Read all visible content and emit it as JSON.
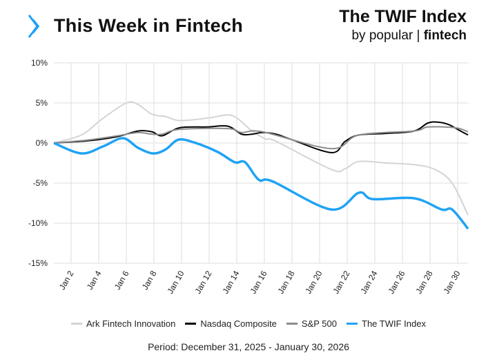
{
  "header": {
    "title": "This Week in Fintech",
    "brand_title": "The TWIF Index",
    "brand_by": "by popular |",
    "brand_bold": "fintech"
  },
  "footer": {
    "period": "Period: December 31, 2025 - January 30, 2026"
  },
  "chart_data": {
    "type": "line",
    "title": "The TWIF Index",
    "xlabel": "",
    "ylabel": "",
    "x_unit": "days since Dec 31, 2025",
    "xlim": [
      0,
      30
    ],
    "ylim": [
      -15,
      10
    ],
    "yticks": [
      10,
      5,
      0,
      -5,
      -10,
      -15
    ],
    "ytick_labels": [
      "10%",
      "5%",
      "0%",
      "-5%",
      "-10%",
      "-15%"
    ],
    "xticks": [
      1.25,
      3.25,
      5.25,
      7.25,
      9.25,
      11.25,
      13.25,
      15.25,
      17.25,
      19.25,
      21.25,
      23.25,
      25.25,
      27.25,
      29.25
    ],
    "xtick_labels": [
      "Jan 2",
      "Jan 4",
      "Jan 6",
      "Jan 8",
      "Jan 10",
      "Jan 12",
      "Jan 14",
      "Jan 16",
      "Jan 18",
      "Jan 20",
      "Jan 22",
      "Jan 24",
      "Jan 26",
      "Jan 28",
      "Jan 30"
    ],
    "grid": true,
    "legend_position": "bottom",
    "series": [
      {
        "name": "Ark Fintech Innovation",
        "color": "#d4d4d4",
        "x": [
          0,
          2,
          3.5,
          5.25,
          6.1,
          7.1,
          8.1,
          9.1,
          11.1,
          12.6,
          13.35,
          14.35,
          15.35,
          16.1,
          20.1,
          21.1,
          22.1,
          24.1,
          26.1,
          27.6,
          28.85,
          30
        ],
        "y": [
          0,
          1.0,
          3.0,
          5.0,
          4.8,
          3.6,
          3.3,
          2.8,
          3.1,
          3.5,
          3.0,
          1.5,
          0.5,
          0.2,
          -3.3,
          -3.2,
          -2.3,
          -2.5,
          -2.7,
          -3.3,
          -5.0,
          -9.0
        ]
      },
      {
        "name": "Nasdaq Composite",
        "color": "#000000",
        "x": [
          0,
          2.6,
          4.6,
          6.1,
          7.1,
          7.85,
          9.1,
          11.1,
          12.6,
          13.6,
          14.35,
          15.1,
          16.1,
          17.1,
          20.1,
          21.1,
          22.1,
          24.1,
          26.1,
          27.1,
          27.85,
          28.6,
          29.35,
          30
        ],
        "y": [
          0,
          0.3,
          0.8,
          1.5,
          1.4,
          0.9,
          1.9,
          2.0,
          2.1,
          1.1,
          1.1,
          1.3,
          1.1,
          0.5,
          -1.2,
          0.2,
          1.0,
          1.2,
          1.5,
          2.5,
          2.6,
          2.3,
          1.6,
          1.0
        ]
      },
      {
        "name": "S&P 500",
        "color": "#8c8c8c",
        "x": [
          0,
          2.6,
          4.6,
          6.1,
          7.1,
          7.85,
          9.1,
          12.6,
          13.6,
          15.1,
          20.1,
          22.1,
          26.1,
          27.1,
          29.1,
          30
        ],
        "y": [
          0,
          0.4,
          0.9,
          1.3,
          1.1,
          1.1,
          1.7,
          1.8,
          1.3,
          1.4,
          -0.7,
          1.0,
          1.5,
          2.0,
          1.9,
          1.4
        ]
      },
      {
        "name": "The TWIF Index",
        "color": "#1fa3f5",
        "x": [
          0,
          2,
          3.6,
          5,
          6.1,
          7.2,
          8.1,
          9,
          10.1,
          11.85,
          13.1,
          13.85,
          14.85,
          15.85,
          20.1,
          22.1,
          23.1,
          26.1,
          28.1,
          28.85,
          30
        ],
        "y": [
          0,
          -1.3,
          -0.4,
          0.6,
          -0.6,
          -1.3,
          -0.8,
          0.4,
          0.1,
          -1.1,
          -2.4,
          -2.4,
          -4.6,
          -4.8,
          -8.3,
          -6.2,
          -7.0,
          -6.9,
          -8.3,
          -8.3,
          -10.7
        ]
      }
    ]
  }
}
